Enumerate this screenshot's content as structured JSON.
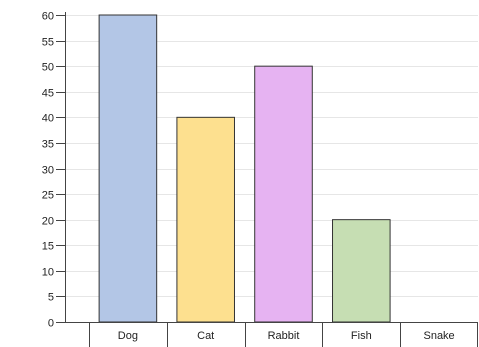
{
  "chart_data": {
    "type": "bar",
    "categories": [
      "Dog",
      "Cat",
      "Rabbit",
      "Fish",
      "Snake"
    ],
    "values": [
      60,
      40,
      50,
      20,
      0
    ],
    "colors": [
      "#b3c6e6",
      "#fde08f",
      "#e6b3f2",
      "#c6deb3",
      "#d9d9d9"
    ],
    "ylim": [
      0,
      60
    ],
    "yticks": [
      0,
      5,
      10,
      15,
      20,
      25,
      30,
      35,
      40,
      45,
      50,
      55,
      60
    ],
    "grid": true,
    "legend": "none"
  }
}
